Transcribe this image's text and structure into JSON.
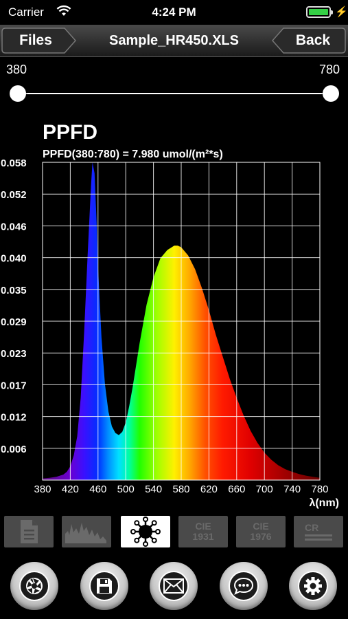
{
  "status": {
    "carrier": "Carrier",
    "time": "4:24 PM"
  },
  "nav": {
    "back_left_label": "Files",
    "title": "Sample_HR450.XLS",
    "back_right_label": "Back"
  },
  "range": {
    "min_label": "380",
    "max_label": "780",
    "min_value": 380,
    "max_value": 780
  },
  "chart_header": {
    "title": "PPFD",
    "subtitle": "PPFD(380:780) = 7.980 umol/(m²*s)"
  },
  "chart_data": {
    "type": "area",
    "xlabel": "λ(nm)",
    "ylabel": "",
    "xlim": [
      380,
      780
    ],
    "ylim": [
      0,
      0.058
    ],
    "grid": true,
    "x_ticks": [
      "380",
      "420",
      "460",
      "500",
      "540",
      "580",
      "620",
      "660",
      "700",
      "740",
      "780"
    ],
    "y_ticks": [
      "0.058",
      "0.052",
      "0.046",
      "0.040",
      "0.035",
      "0.029",
      "0.023",
      "0.017",
      "0.012",
      "0.006"
    ],
    "x": [
      380,
      390,
      400,
      410,
      415,
      420,
      425,
      430,
      435,
      440,
      445,
      450,
      452,
      455,
      458,
      460,
      465,
      470,
      475,
      480,
      485,
      490,
      495,
      500,
      505,
      510,
      520,
      530,
      540,
      550,
      560,
      570,
      575,
      580,
      590,
      600,
      610,
      620,
      630,
      640,
      650,
      660,
      670,
      680,
      690,
      700,
      710,
      720,
      730,
      740,
      750,
      760,
      770,
      780
    ],
    "y": [
      0.0003,
      0.0004,
      0.0006,
      0.001,
      0.0015,
      0.0025,
      0.0045,
      0.008,
      0.015,
      0.027,
      0.041,
      0.054,
      0.058,
      0.056,
      0.047,
      0.039,
      0.026,
      0.0175,
      0.0125,
      0.0098,
      0.0086,
      0.0082,
      0.0088,
      0.0105,
      0.0135,
      0.017,
      0.025,
      0.032,
      0.037,
      0.0405,
      0.042,
      0.0428,
      0.0428,
      0.0425,
      0.041,
      0.0385,
      0.035,
      0.031,
      0.0265,
      0.0225,
      0.0185,
      0.015,
      0.0118,
      0.009,
      0.0068,
      0.005,
      0.0037,
      0.0027,
      0.002,
      0.0015,
      0.0011,
      0.0008,
      0.0006,
      0.0004
    ]
  },
  "tabs": [
    {
      "name": "document",
      "label": ""
    },
    {
      "name": "spectrum",
      "label": ""
    },
    {
      "name": "ppfd",
      "label": ""
    },
    {
      "name": "cie1931",
      "label": "CIE 1931"
    },
    {
      "name": "cie1976",
      "label": "CIE 1976"
    },
    {
      "name": "cri",
      "label": "CR"
    }
  ],
  "tab_text": {
    "cie1931_a": "CIE",
    "cie1931_b": "1931",
    "cie1976_a": "CIE",
    "cie1976_b": "1976",
    "cri": "CR"
  },
  "colors": {
    "background": "#000000",
    "tab_inactive": "#4a4a4a",
    "tab_active": "#ffffff",
    "battery": "#35d046"
  },
  "bottom_buttons": [
    {
      "icon": "camera-shutter-icon"
    },
    {
      "icon": "save-disk-icon"
    },
    {
      "icon": "mail-icon"
    },
    {
      "icon": "chat-bubble-icon"
    },
    {
      "icon": "gear-icon"
    }
  ]
}
